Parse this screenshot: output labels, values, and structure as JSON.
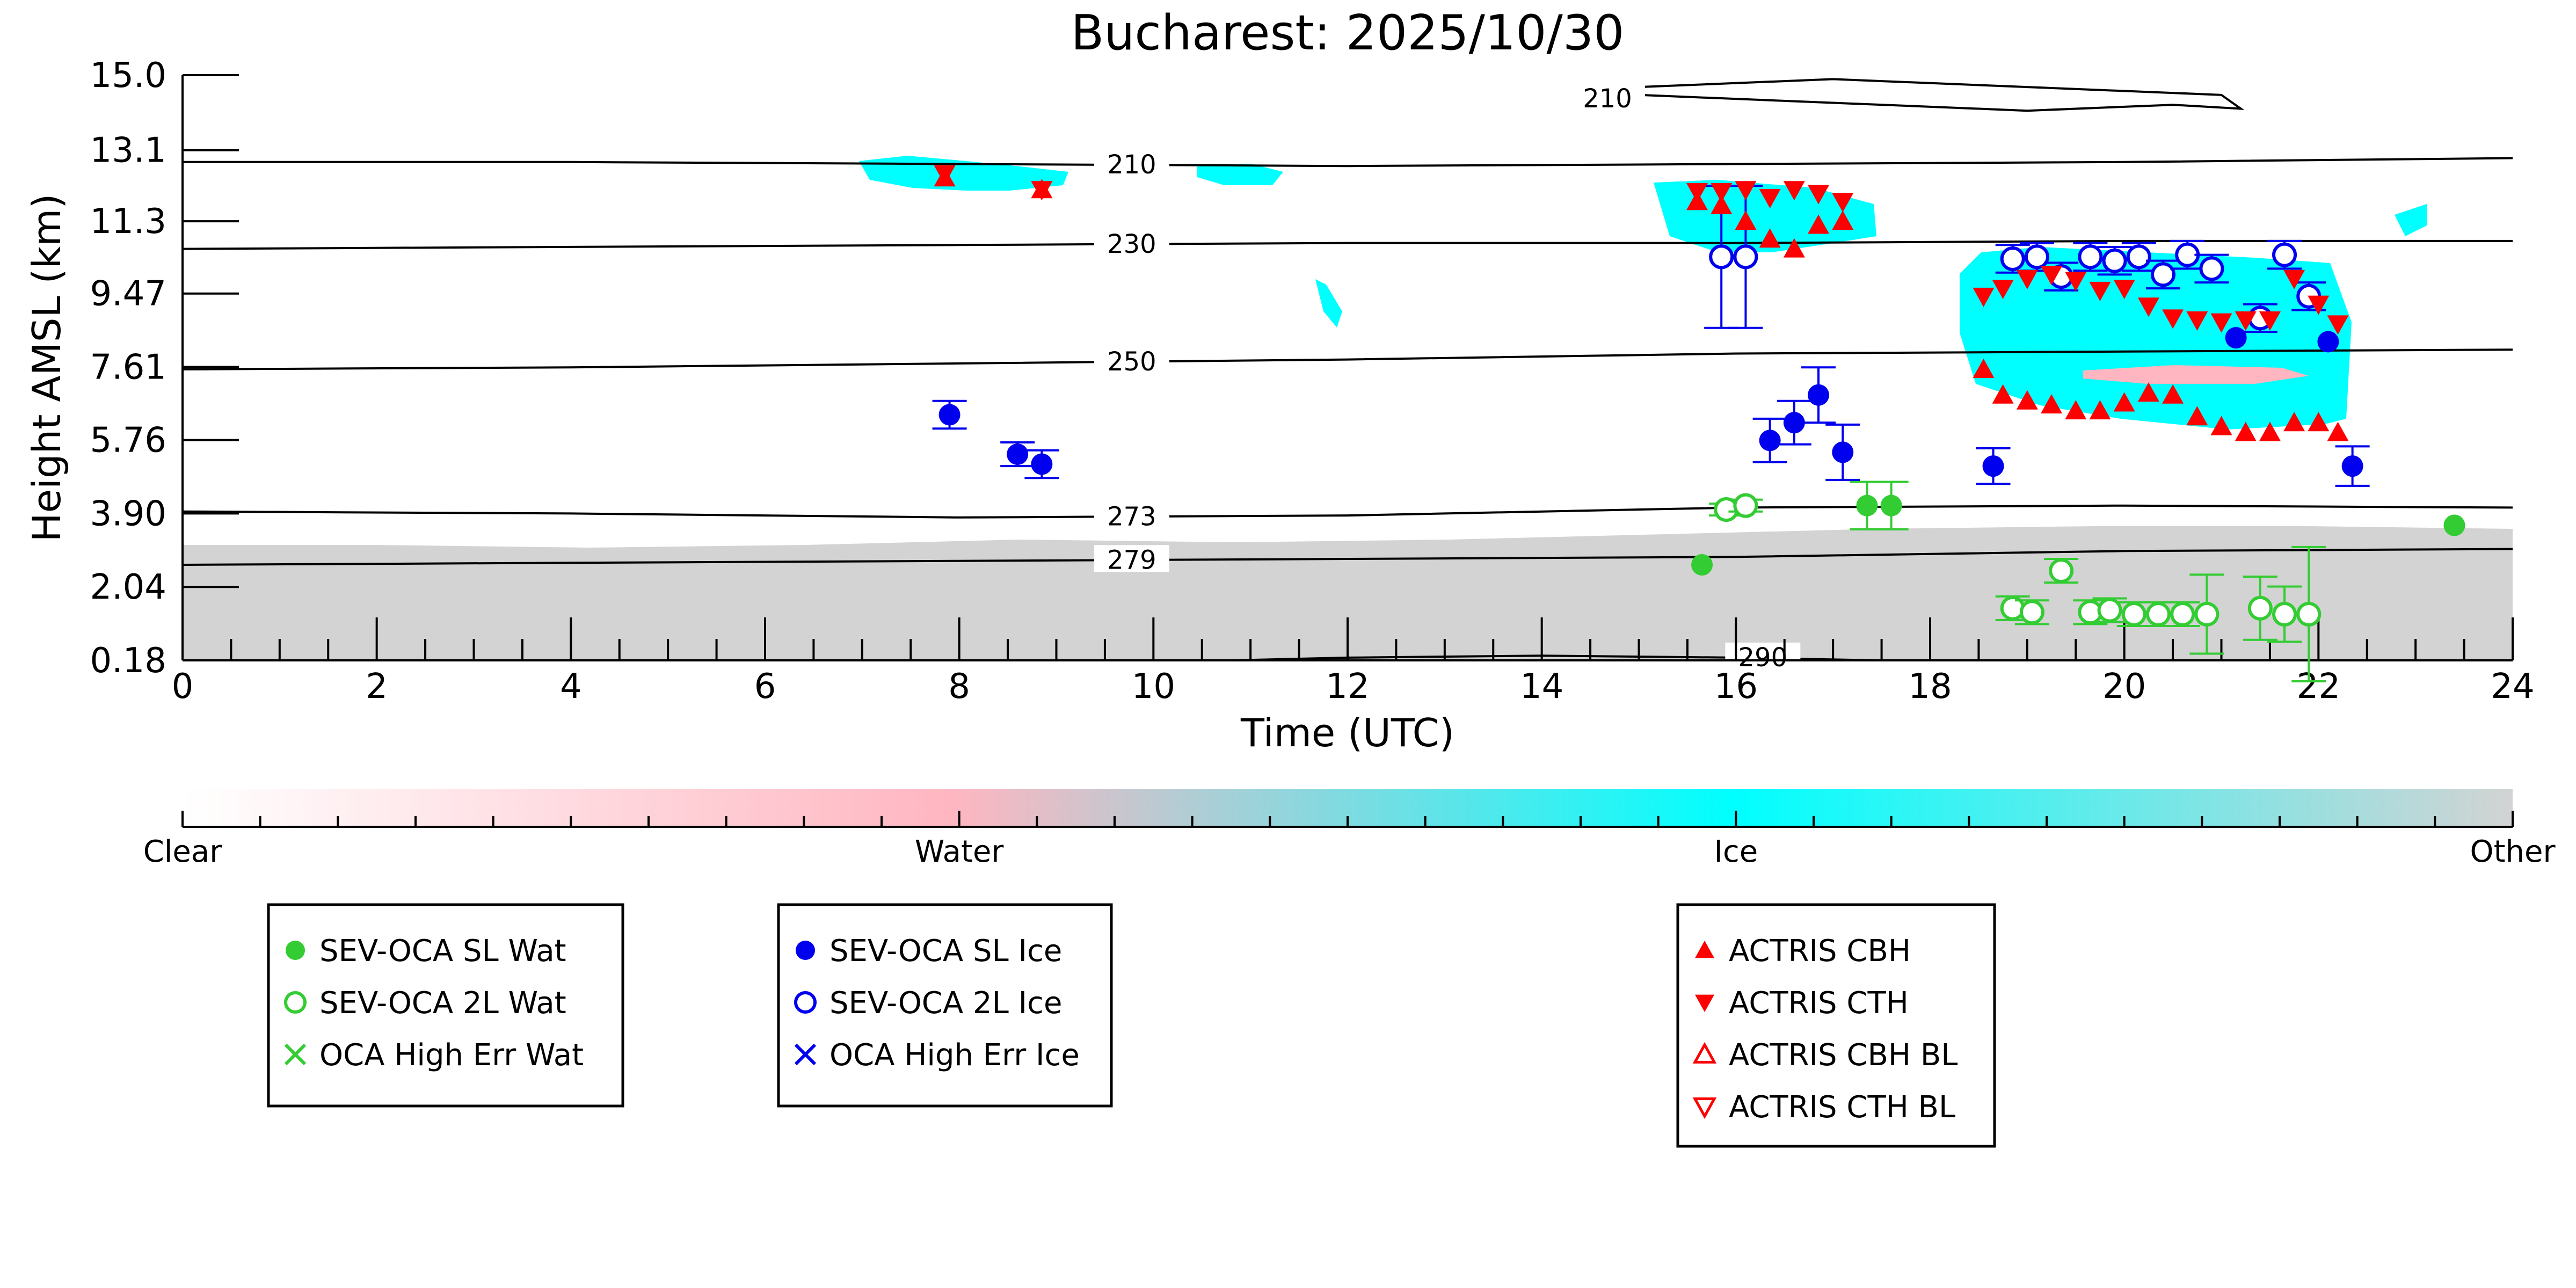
{
  "chart_data": {
    "type": "scatter",
    "title": "Bucharest: 2025/10/30",
    "xlabel": "Time (UTC)",
    "ylabel": "Height AMSL (km)",
    "xlim": [
      0,
      24
    ],
    "ylim": [
      0.18,
      15.0
    ],
    "x_ticks": [
      0,
      2,
      4,
      6,
      8,
      10,
      12,
      14,
      16,
      18,
      20,
      22,
      24
    ],
    "y_ticks": [
      "0.18",
      "2.04",
      "3.90",
      "5.76",
      "7.61",
      "9.47",
      "11.3",
      "13.1",
      "15.0"
    ],
    "colorbar": {
      "labels": [
        "Clear",
        "Water",
        "Ice",
        "Other"
      ],
      "colors": [
        "#ffffff",
        "#ffb6c1",
        "#00ffff",
        "#d3d3d3"
      ]
    },
    "contours": [
      {
        "label": "290",
        "label_x": 16.0,
        "points": [
          [
            10.8,
            0.18
          ],
          [
            12,
            0.25
          ],
          [
            14,
            0.3
          ],
          [
            16,
            0.25
          ],
          [
            17.5,
            0.18
          ]
        ]
      },
      {
        "label": "279",
        "label_x": 9.5,
        "points": [
          [
            0,
            2.6
          ],
          [
            4,
            2.65
          ],
          [
            8,
            2.7
          ],
          [
            12,
            2.75
          ],
          [
            16,
            2.8
          ],
          [
            20,
            2.95
          ],
          [
            24,
            3.0
          ]
        ]
      },
      {
        "label": "273",
        "label_x": 9.5,
        "points": [
          [
            0,
            3.95
          ],
          [
            4,
            3.9
          ],
          [
            8,
            3.8
          ],
          [
            12,
            3.85
          ],
          [
            16,
            4.05
          ],
          [
            20,
            4.1
          ],
          [
            24,
            4.05
          ]
        ]
      },
      {
        "label": "250",
        "label_x": 9.5,
        "points": [
          [
            0,
            7.55
          ],
          [
            4,
            7.6
          ],
          [
            8,
            7.7
          ],
          [
            12,
            7.8
          ],
          [
            16,
            7.95
          ],
          [
            20,
            8.0
          ],
          [
            24,
            8.05
          ]
        ]
      },
      {
        "label": "230",
        "label_x": 9.5,
        "points": [
          [
            0,
            10.6
          ],
          [
            4,
            10.65
          ],
          [
            8,
            10.7
          ],
          [
            12,
            10.75
          ],
          [
            16,
            10.75
          ],
          [
            20,
            10.8
          ],
          [
            24,
            10.8
          ]
        ]
      },
      {
        "label": "210",
        "label_x": 9.5,
        "points": [
          [
            0,
            12.8
          ],
          [
            4,
            12.8
          ],
          [
            8,
            12.75
          ],
          [
            12,
            12.7
          ],
          [
            16,
            12.75
          ],
          [
            20,
            12.8
          ],
          [
            24,
            12.9
          ]
        ]
      },
      {
        "label": "210",
        "label_x": 14.4,
        "points": [
          [
            14.4,
            14.4
          ],
          [
            15,
            14.5
          ],
          [
            17,
            14.3
          ],
          [
            19,
            14.1
          ],
          [
            20.5,
            14.25
          ],
          [
            21.2,
            14.15
          ],
          [
            21.0,
            14.5
          ],
          [
            19,
            14.7
          ],
          [
            17,
            14.9
          ],
          [
            15,
            14.7
          ],
          [
            14.4,
            14.4
          ]
        ]
      }
    ],
    "series": [
      {
        "name": "SEV-OCA SL Wat",
        "marker": "filled-circle",
        "color": "#33cc33",
        "points": [
          {
            "x": 15.65,
            "y": 2.6
          },
          {
            "x": 17.35,
            "y": 4.1,
            "err": 0.6
          },
          {
            "x": 17.6,
            "y": 4.1,
            "err": 0.6
          },
          {
            "x": 23.4,
            "y": 3.6
          }
        ]
      },
      {
        "name": "SEV-OCA 2L Wat",
        "marker": "open-circle",
        "color": "#33cc33",
        "points": [
          {
            "x": 15.9,
            "y": 4.0,
            "err": 0.15
          },
          {
            "x": 16.1,
            "y": 4.1,
            "err": 0.15
          },
          {
            "x": 18.85,
            "y": 1.5,
            "err": 0.3
          },
          {
            "x": 19.05,
            "y": 1.4,
            "err": 0.3
          },
          {
            "x": 19.35,
            "y": 2.45,
            "err": 0.3
          },
          {
            "x": 19.65,
            "y": 1.4,
            "err": 0.3
          },
          {
            "x": 19.85,
            "y": 1.45,
            "err": 0.3
          },
          {
            "x": 20.1,
            "y": 1.35,
            "err": 0.3
          },
          {
            "x": 20.35,
            "y": 1.35,
            "err": 0.3
          },
          {
            "x": 20.6,
            "y": 1.35,
            "err": 0.3
          },
          {
            "x": 20.85,
            "y": 1.35,
            "err": 1.0
          },
          {
            "x": 21.4,
            "y": 1.5,
            "err": 0.8
          },
          {
            "x": 21.65,
            "y": 1.35,
            "err": 0.7
          },
          {
            "x": 21.9,
            "y": 1.35,
            "err": 1.7
          }
        ]
      },
      {
        "name": "OCA High Err Wat",
        "marker": "x",
        "color": "#33cc33",
        "points": []
      },
      {
        "name": "SEV-OCA SL Ice",
        "marker": "filled-circle",
        "color": "#0000ee",
        "points": [
          {
            "x": 7.9,
            "y": 6.4,
            "err": 0.35
          },
          {
            "x": 8.6,
            "y": 5.4,
            "err": 0.3
          },
          {
            "x": 8.85,
            "y": 5.15,
            "err": 0.35
          },
          {
            "x": 16.35,
            "y": 5.75,
            "err": 0.55
          },
          {
            "x": 16.6,
            "y": 6.2,
            "err": 0.55
          },
          {
            "x": 16.85,
            "y": 6.9,
            "err": 0.7
          },
          {
            "x": 17.1,
            "y": 5.45,
            "err": 0.7
          },
          {
            "x": 18.65,
            "y": 5.1,
            "err": 0.45
          },
          {
            "x": 21.15,
            "y": 8.35
          },
          {
            "x": 22.1,
            "y": 8.25
          },
          {
            "x": 22.35,
            "y": 5.1,
            "err": 0.5
          }
        ]
      },
      {
        "name": "SEV-OCA 2L Ice",
        "marker": "open-circle",
        "color": "#0000ee",
        "points": [
          {
            "x": 15.85,
            "y": 10.4,
            "err": 1.8
          },
          {
            "x": 16.1,
            "y": 10.4,
            "err": 1.8
          },
          {
            "x": 18.85,
            "y": 10.35,
            "err": 0.35
          },
          {
            "x": 19.1,
            "y": 10.4,
            "err": 0.35
          },
          {
            "x": 19.35,
            "y": 9.9,
            "err": 0.35
          },
          {
            "x": 19.65,
            "y": 10.4,
            "err": 0.35
          },
          {
            "x": 19.9,
            "y": 10.3,
            "err": 0.35
          },
          {
            "x": 20.15,
            "y": 10.4,
            "err": 0.35
          },
          {
            "x": 20.4,
            "y": 9.95,
            "err": 0.35
          },
          {
            "x": 20.65,
            "y": 10.45,
            "err": 0.35
          },
          {
            "x": 20.9,
            "y": 10.1,
            "err": 0.35
          },
          {
            "x": 21.4,
            "y": 8.85,
            "err": 0.35
          },
          {
            "x": 21.65,
            "y": 10.45,
            "err": 0.35
          },
          {
            "x": 21.9,
            "y": 9.4,
            "err": 0.35
          }
        ]
      },
      {
        "name": "OCA High Err Ice",
        "marker": "x",
        "color": "#0000ee",
        "points": []
      },
      {
        "name": "ACTRIS CBH",
        "marker": "filled-triangle-up",
        "color": "#ff0000",
        "points": [
          {
            "x": 7.85,
            "y": 12.4
          },
          {
            "x": 8.85,
            "y": 12.1
          },
          {
            "x": 15.6,
            "y": 11.8
          },
          {
            "x": 15.85,
            "y": 11.7
          },
          {
            "x": 16.1,
            "y": 11.3
          },
          {
            "x": 16.35,
            "y": 10.85
          },
          {
            "x": 16.6,
            "y": 10.6
          },
          {
            "x": 16.85,
            "y": 11.2
          },
          {
            "x": 17.1,
            "y": 11.3
          },
          {
            "x": 18.55,
            "y": 7.55
          },
          {
            "x": 18.75,
            "y": 6.9
          },
          {
            "x": 19.0,
            "y": 6.75
          },
          {
            "x": 19.25,
            "y": 6.65
          },
          {
            "x": 19.5,
            "y": 6.5
          },
          {
            "x": 19.75,
            "y": 6.5
          },
          {
            "x": 20.0,
            "y": 6.7
          },
          {
            "x": 20.25,
            "y": 6.95
          },
          {
            "x": 20.5,
            "y": 6.9
          },
          {
            "x": 20.75,
            "y": 6.35
          },
          {
            "x": 21.0,
            "y": 6.1
          },
          {
            "x": 21.25,
            "y": 5.95
          },
          {
            "x": 21.5,
            "y": 5.95
          },
          {
            "x": 21.75,
            "y": 6.2
          },
          {
            "x": 22.0,
            "y": 6.2
          },
          {
            "x": 22.2,
            "y": 5.95
          }
        ]
      },
      {
        "name": "ACTRIS CTH",
        "marker": "filled-triangle-down",
        "color": "#ff0000",
        "points": [
          {
            "x": 7.85,
            "y": 12.5
          },
          {
            "x": 8.85,
            "y": 12.1
          },
          {
            "x": 15.6,
            "y": 12.05
          },
          {
            "x": 15.85,
            "y": 12.05
          },
          {
            "x": 16.1,
            "y": 12.1
          },
          {
            "x": 16.35,
            "y": 11.9
          },
          {
            "x": 16.6,
            "y": 12.1
          },
          {
            "x": 16.85,
            "y": 12.0
          },
          {
            "x": 17.1,
            "y": 11.8
          },
          {
            "x": 18.55,
            "y": 9.4
          },
          {
            "x": 18.75,
            "y": 9.6
          },
          {
            "x": 19.0,
            "y": 9.85
          },
          {
            "x": 19.25,
            "y": 9.95
          },
          {
            "x": 19.5,
            "y": 9.8
          },
          {
            "x": 19.75,
            "y": 9.55
          },
          {
            "x": 20.0,
            "y": 9.6
          },
          {
            "x": 20.25,
            "y": 9.15
          },
          {
            "x": 20.5,
            "y": 8.85
          },
          {
            "x": 20.75,
            "y": 8.8
          },
          {
            "x": 21.0,
            "y": 8.75
          },
          {
            "x": 21.25,
            "y": 8.8
          },
          {
            "x": 21.5,
            "y": 8.8
          },
          {
            "x": 21.75,
            "y": 9.85
          },
          {
            "x": 22.0,
            "y": 9.2
          },
          {
            "x": 22.2,
            "y": 8.7
          }
        ]
      },
      {
        "name": "ACTRIS CBH BL",
        "marker": "open-triangle-up",
        "color": "#ff0000",
        "points": []
      },
      {
        "name": "ACTRIS CTH BL",
        "marker": "open-triangle-down",
        "color": "#ff0000",
        "points": []
      }
    ],
    "legend_groups": [
      [
        "SEV-OCA SL Wat",
        "SEV-OCA 2L Wat",
        "OCA High Err Wat"
      ],
      [
        "SEV-OCA SL Ice",
        "SEV-OCA 2L Ice",
        "OCA High Err Ice"
      ],
      [
        "ACTRIS CBH",
        "ACTRIS CTH",
        "ACTRIS CBH BL",
        "ACTRIS CTH BL"
      ]
    ]
  }
}
